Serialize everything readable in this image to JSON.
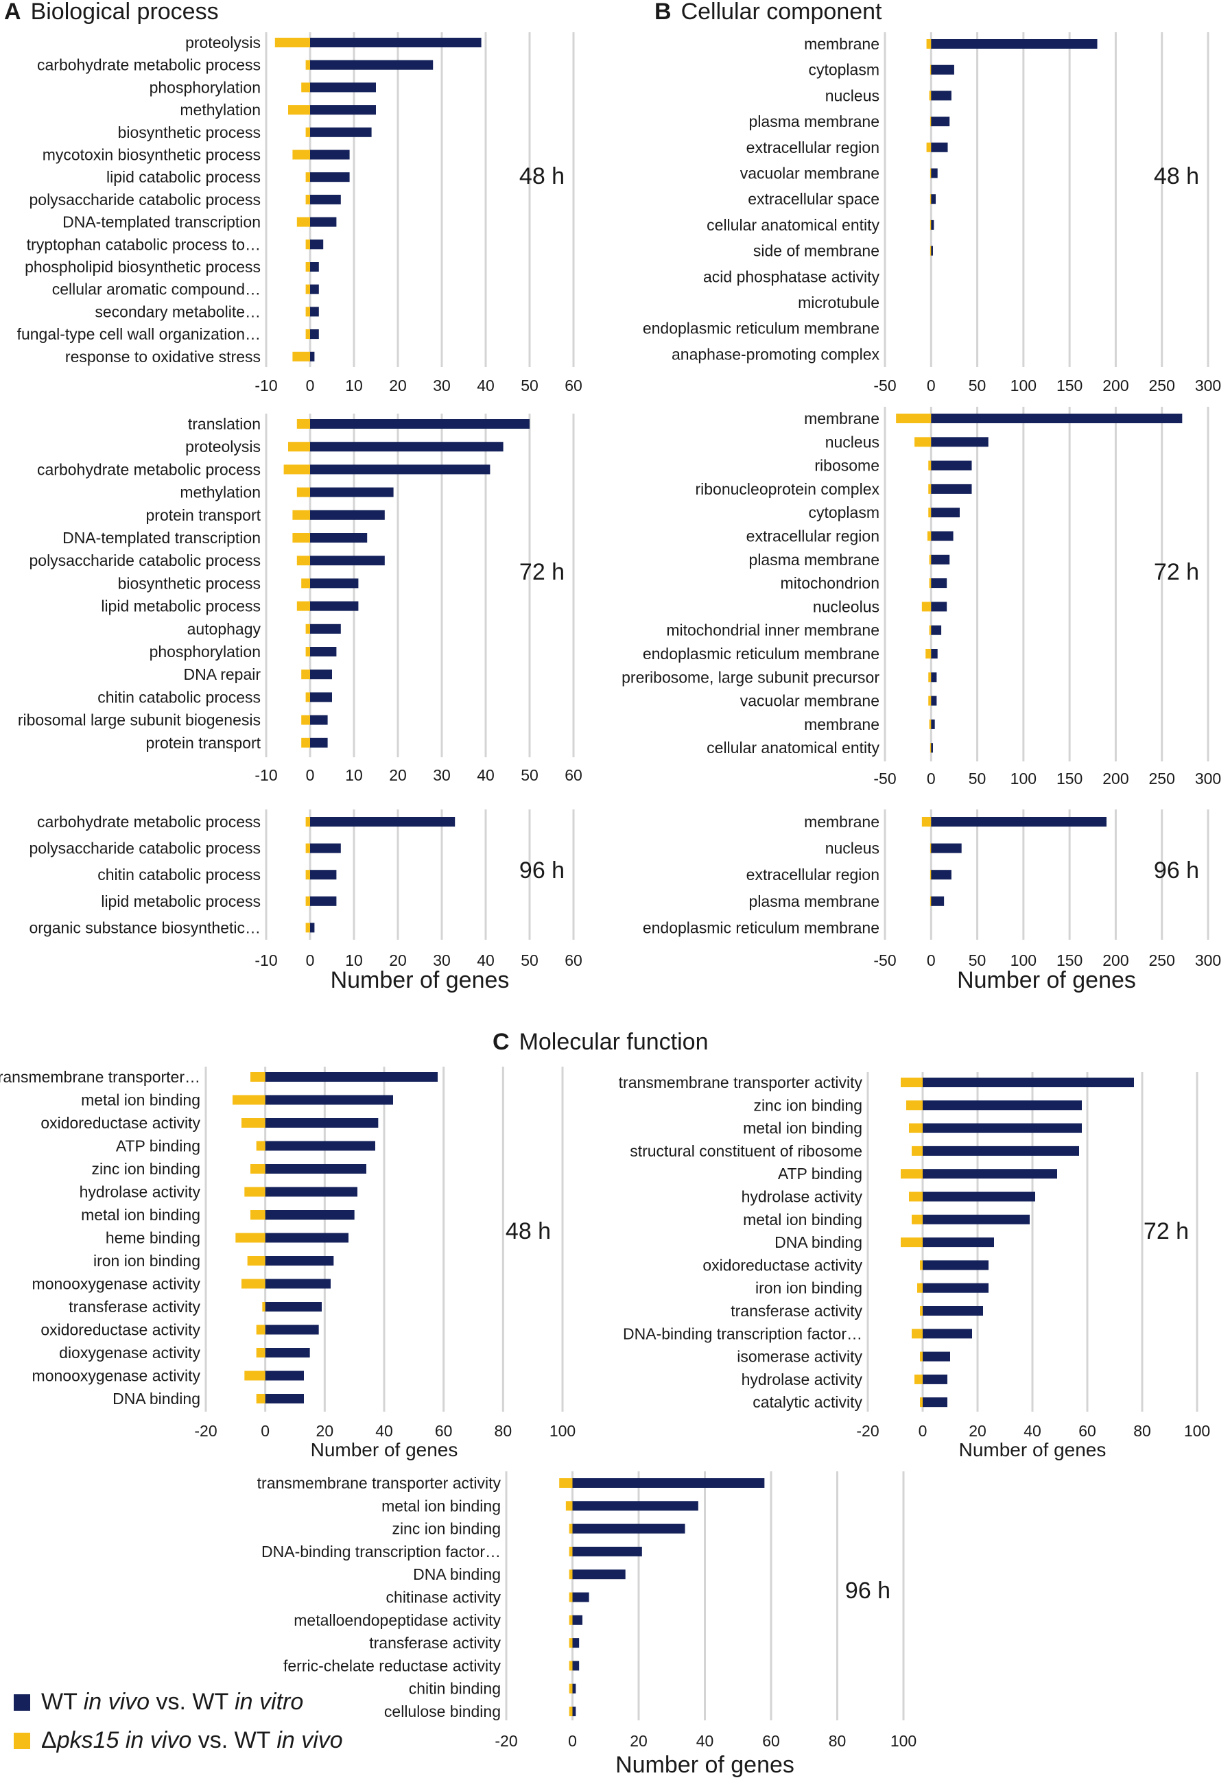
{
  "figure": {
    "section_a": {
      "letter": "A",
      "title": "Biological process"
    },
    "section_b": {
      "letter": "B",
      "title": "Cellular component"
    },
    "section_c": {
      "letter": "C",
      "title": "Molecular function"
    },
    "legend": {
      "wt": {
        "prefix": "WT ",
        "italic1": "in vivo",
        "mid": " vs. WT ",
        "italic2": "in vitro",
        "color": "#14215a"
      },
      "pks": {
        "delta": "Δ",
        "gene": "pks15",
        "mid1": " ",
        "italic1": "in vivo",
        "mid2": " vs. WT ",
        "italic2": "in vivo",
        "color": "#f6bd16"
      }
    }
  },
  "chart_data": [
    {
      "id": "bp48",
      "type": "bar",
      "orientation": "horizontal",
      "section": "Biological process",
      "timepoint": "48 h",
      "xlabel": "",
      "xlim": [
        -10,
        60
      ],
      "xticks": [
        "-10",
        "0",
        "10",
        "20",
        "30",
        "40",
        "50",
        "60"
      ],
      "grid": true,
      "categories": [
        "proteolysis",
        "carbohydrate metabolic process",
        "phosphorylation",
        "methylation",
        "biosynthetic process",
        "mycotoxin biosynthetic process",
        "lipid catabolic process",
        "polysaccharide catabolic process",
        "DNA-templated transcription",
        "tryptophan catabolic process to…",
        "phospholipid biosynthetic process",
        "cellular aromatic compound…",
        "secondary metabolite…",
        "fungal-type cell wall organization…",
        "response to oxidative stress"
      ],
      "series": [
        {
          "name": "WT in vivo vs. WT in vitro",
          "values": [
            39,
            28,
            15,
            15,
            14,
            9,
            9,
            7,
            6,
            3,
            2,
            2,
            2,
            2,
            1
          ]
        },
        {
          "name": "Δpks15 in vivo vs. WT in vivo",
          "values": [
            -8,
            -1,
            -2,
            -5,
            -1,
            -4,
            -1,
            -1,
            -3,
            -1,
            -1,
            -1,
            -1,
            -1,
            -4
          ]
        }
      ]
    },
    {
      "id": "bp72",
      "type": "bar",
      "orientation": "horizontal",
      "section": "Biological process",
      "timepoint": "72 h",
      "xlabel": "",
      "xlim": [
        -10,
        60
      ],
      "xticks": [
        "-10",
        "0",
        "10",
        "20",
        "30",
        "40",
        "50",
        "60"
      ],
      "grid": true,
      "categories": [
        "translation",
        "proteolysis",
        "carbohydrate metabolic process",
        "methylation",
        "protein transport",
        "DNA-templated transcription",
        "polysaccharide catabolic process",
        "biosynthetic process",
        "lipid metabolic process",
        "autophagy",
        "phosphorylation",
        "DNA repair",
        "chitin catabolic process",
        "ribosomal large subunit biogenesis",
        "protein transport"
      ],
      "series": [
        {
          "name": "WT in vivo vs. WT in vitro",
          "values": [
            50,
            44,
            41,
            19,
            17,
            13,
            17,
            11,
            11,
            7,
            6,
            5,
            5,
            4,
            4
          ]
        },
        {
          "name": "Δpks15 in vivo vs. WT in vivo",
          "values": [
            -3,
            -5,
            -6,
            -3,
            -4,
            -4,
            -3,
            -2,
            -3,
            -1,
            -1,
            -2,
            -1,
            -2,
            -2
          ]
        }
      ]
    },
    {
      "id": "bp96",
      "type": "bar",
      "orientation": "horizontal",
      "section": "Biological process",
      "timepoint": "96 h",
      "xlabel": "Number of genes",
      "xlim": [
        -10,
        60
      ],
      "xticks": [
        "-10",
        "0",
        "10",
        "20",
        "30",
        "40",
        "50",
        "60"
      ],
      "grid": true,
      "categories": [
        "carbohydrate metabolic process",
        "polysaccharide catabolic process",
        "chitin catabolic process",
        "lipid metabolic process",
        "organic substance biosynthetic…"
      ],
      "series": [
        {
          "name": "WT in vivo vs. WT in vitro",
          "values": [
            33,
            7,
            6,
            6,
            1
          ]
        },
        {
          "name": "Δpks15 in vivo vs. WT in vivo",
          "values": [
            -1,
            -1,
            -1,
            -1,
            -1
          ]
        }
      ]
    },
    {
      "id": "cc48",
      "type": "bar",
      "orientation": "horizontal",
      "section": "Cellular component",
      "timepoint": "48 h",
      "xlabel": "",
      "xlim": [
        -50,
        300
      ],
      "xticks": [
        "-50",
        "0",
        "50",
        "100",
        "150",
        "200",
        "250",
        "300"
      ],
      "grid": true,
      "categories": [
        "membrane",
        "cytoplasm",
        "nucleus",
        "plasma membrane",
        "extracellular region",
        "vacuolar membrane",
        "extracellular space",
        "cellular anatomical entity",
        "side of membrane",
        "acid phosphatase activity",
        "microtubule",
        "endoplasmic reticulum membrane",
        "anaphase-promoting complex"
      ],
      "series": [
        {
          "name": "WT in vivo vs. WT in vitro",
          "values": [
            180,
            25,
            22,
            20,
            18,
            7,
            5,
            3,
            2,
            0,
            0,
            0,
            0
          ]
        },
        {
          "name": "Δpks15 in vivo vs. WT in vivo",
          "values": [
            -5,
            -1,
            -2,
            -1,
            -5,
            -1,
            -1,
            -1,
            -1,
            0,
            0,
            0,
            0
          ]
        }
      ]
    },
    {
      "id": "cc72",
      "type": "bar",
      "orientation": "horizontal",
      "section": "Cellular component",
      "timepoint": "72 h",
      "xlabel": "",
      "xlim": [
        -50,
        300
      ],
      "xticks": [
        "-50",
        "0",
        "50",
        "100",
        "150",
        "200",
        "250",
        "300"
      ],
      "grid": true,
      "categories": [
        "membrane",
        "nucleus",
        "ribosome",
        "ribonucleoprotein complex",
        "cytoplasm",
        "extracellular region",
        "plasma membrane",
        "mitochondrion",
        "nucleolus",
        "mitochondrial inner membrane",
        "endoplasmic reticulum membrane",
        "preribosome, large subunit precursor",
        "vacuolar membrane",
        "membrane",
        "cellular anatomical entity"
      ],
      "series": [
        {
          "name": "WT in vivo vs. WT in vitro",
          "values": [
            272,
            62,
            44,
            44,
            31,
            24,
            20,
            17,
            17,
            11,
            7,
            6,
            6,
            4,
            2
          ]
        },
        {
          "name": "Δpks15 in vivo vs. WT in vivo",
          "values": [
            -38,
            -18,
            -3,
            -3,
            -3,
            -4,
            -2,
            -2,
            -10,
            -2,
            -6,
            -3,
            -3,
            -2,
            -1
          ]
        }
      ]
    },
    {
      "id": "cc96",
      "type": "bar",
      "orientation": "horizontal",
      "section": "Cellular component",
      "timepoint": "96 h",
      "xlabel": "Number of genes",
      "xlim": [
        -50,
        300
      ],
      "xticks": [
        "-50",
        "0",
        "50",
        "100",
        "150",
        "200",
        "250",
        "300"
      ],
      "grid": true,
      "categories": [
        "membrane",
        "nucleus",
        "extracellular region",
        "plasma membrane",
        "endoplasmic reticulum membrane"
      ],
      "series": [
        {
          "name": "WT in vivo vs. WT in vitro",
          "values": [
            190,
            33,
            22,
            14,
            0
          ]
        },
        {
          "name": "Δpks15 in vivo vs. WT in vivo",
          "values": [
            -10,
            -1,
            -1,
            -1,
            0
          ]
        }
      ]
    },
    {
      "id": "mf48",
      "type": "bar",
      "orientation": "horizontal",
      "section": "Molecular function",
      "timepoint": "48 h",
      "xlabel": "Number of genes",
      "xlim": [
        -20,
        100
      ],
      "xticks": [
        "-20",
        "0",
        "20",
        "40",
        "60",
        "80",
        "100"
      ],
      "grid": true,
      "categories": [
        "transmembrane transporter…",
        "metal ion binding",
        "oxidoreductase activity",
        "ATP binding",
        "zinc ion binding",
        "hydrolase activity",
        "metal ion binding",
        "heme binding",
        "iron ion binding",
        "monooxygenase activity",
        "transferase activity",
        "oxidoreductase activity",
        "dioxygenase activity",
        "monooxygenase activity",
        "DNA binding"
      ],
      "series": [
        {
          "name": "WT in vivo vs. WT in vitro",
          "values": [
            58,
            43,
            38,
            37,
            34,
            31,
            30,
            28,
            23,
            22,
            19,
            18,
            15,
            13,
            13
          ]
        },
        {
          "name": "Δpks15 in vivo vs. WT in vivo",
          "values": [
            -5,
            -11,
            -8,
            -3,
            -5,
            -7,
            -5,
            -10,
            -6,
            -8,
            -1,
            -3,
            -3,
            -7,
            -3
          ]
        }
      ]
    },
    {
      "id": "mf72",
      "type": "bar",
      "orientation": "horizontal",
      "section": "Molecular function",
      "timepoint": "72 h",
      "xlabel": "Number of genes",
      "xlim": [
        -20,
        100
      ],
      "xticks": [
        "-20",
        "0",
        "20",
        "40",
        "60",
        "80",
        "100"
      ],
      "grid": true,
      "categories": [
        "transmembrane transporter activity",
        "zinc ion binding",
        "metal ion binding",
        "structural constituent of ribosome",
        "ATP binding",
        "hydrolase activity",
        "metal ion binding",
        "DNA binding",
        "oxidoreductase activity",
        "iron ion binding",
        "transferase activity",
        "DNA-binding transcription factor…",
        "isomerase activity",
        "hydrolase activity",
        "catalytic activity"
      ],
      "series": [
        {
          "name": "WT in vivo vs. WT in vitro",
          "values": [
            77,
            58,
            58,
            57,
            49,
            41,
            39,
            26,
            24,
            24,
            22,
            18,
            10,
            9,
            9
          ]
        },
        {
          "name": "Δpks15 in vivo vs. WT in vivo",
          "values": [
            -8,
            -6,
            -5,
            -4,
            -8,
            -5,
            -4,
            -8,
            -1,
            -2,
            -1,
            -4,
            -1,
            -3,
            -1
          ]
        }
      ]
    },
    {
      "id": "mf96",
      "type": "bar",
      "orientation": "horizontal",
      "section": "Molecular function",
      "timepoint": "96 h",
      "xlabel": "Number of genes",
      "xlim": [
        -20,
        100
      ],
      "xticks": [
        "-20",
        "0",
        "20",
        "40",
        "60",
        "80",
        "100"
      ],
      "grid": true,
      "categories": [
        "transmembrane transporter activity",
        "metal ion binding",
        "zinc ion binding",
        "DNA-binding transcription factor…",
        "DNA binding",
        "chitinase activity",
        "metalloendopeptidase activity",
        "transferase activity",
        "ferric-chelate reductase activity",
        "chitin binding",
        "cellulose binding"
      ],
      "series": [
        {
          "name": "WT in vivo vs. WT in vitro",
          "values": [
            58,
            38,
            34,
            21,
            16,
            5,
            3,
            2,
            2,
            1,
            1
          ]
        },
        {
          "name": "Δpks15 in vivo vs. WT in vivo",
          "values": [
            -4,
            -2,
            -1,
            -1,
            -1,
            -1,
            -1,
            -1,
            -1,
            -1,
            -1
          ]
        }
      ]
    }
  ]
}
